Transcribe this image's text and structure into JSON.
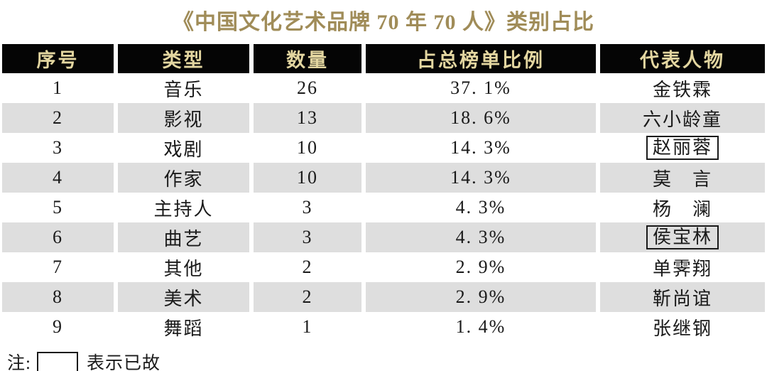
{
  "chart_data": {
    "type": "table",
    "title": "《中国文化艺术品牌 70 年 70 人》类别占比",
    "columns": [
      "序号",
      "类型",
      "数量",
      "占总榜单比例",
      "代表人物"
    ],
    "rows": [
      {
        "no": "1",
        "type": "音乐",
        "count": 26,
        "pct_display": "37. 1%",
        "pct": 37.1,
        "person": "金铁霖",
        "deceased": false
      },
      {
        "no": "2",
        "type": "影视",
        "count": 13,
        "pct_display": "18. 6%",
        "pct": 18.6,
        "person": "六小龄童",
        "deceased": false
      },
      {
        "no": "3",
        "type": "戏剧",
        "count": 10,
        "pct_display": "14. 3%",
        "pct": 14.3,
        "person": "赵丽蓉",
        "deceased": true
      },
      {
        "no": "4",
        "type": "作家",
        "count": 10,
        "pct_display": "14. 3%",
        "pct": 14.3,
        "person": "莫　言",
        "deceased": false
      },
      {
        "no": "5",
        "type": "主持人",
        "count": 3,
        "pct_display": "4. 3%",
        "pct": 4.3,
        "person": "杨　澜",
        "deceased": false
      },
      {
        "no": "6",
        "type": "曲艺",
        "count": 3,
        "pct_display": "4. 3%",
        "pct": 4.3,
        "person": "侯宝林",
        "deceased": true
      },
      {
        "no": "7",
        "type": "其他",
        "count": 2,
        "pct_display": "2. 9%",
        "pct": 2.9,
        "person": "单霁翔",
        "deceased": false
      },
      {
        "no": "8",
        "type": "美术",
        "count": 2,
        "pct_display": "2. 9%",
        "pct": 2.9,
        "person": "靳尚谊",
        "deceased": false
      },
      {
        "no": "9",
        "type": "舞蹈",
        "count": 1,
        "pct_display": "1. 4%",
        "pct": 1.4,
        "person": "张继钢",
        "deceased": false
      }
    ],
    "layout_hints": {
      "row_striping": "white / light-gray alternating",
      "deceased_marker": "name enclosed in rectangular box"
    }
  },
  "note": {
    "prefix": "注:",
    "meaning": "表示已故"
  },
  "colors": {
    "title_gold": "#a08c58",
    "header_bg": "#050505",
    "header_text_gold": "#e3d6a0",
    "row_alt_gray": "#dedede",
    "body_text": "#1a1a1a"
  }
}
